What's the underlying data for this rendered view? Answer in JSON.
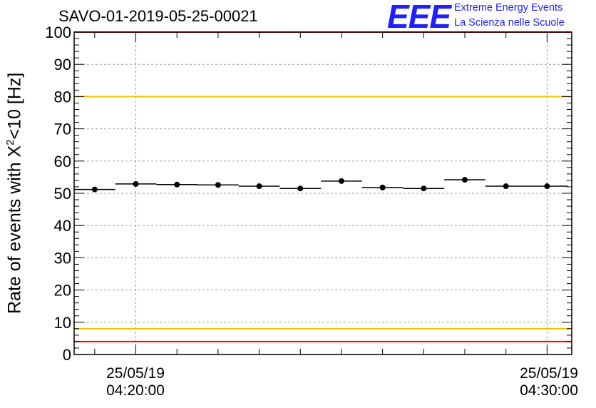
{
  "header": {
    "title": "SAVO-01-2019-05-25-00021",
    "logo_mark": "EEE",
    "logo_line1": "Extreme Energy Events",
    "logo_line2": "La Scienza nelle Scuole"
  },
  "colors": {
    "red_line": "#ff0000",
    "yellow_line": "#f2c200",
    "logo": "#1f1fff",
    "grid": "#9a9a9a"
  },
  "chart_data": {
    "type": "scatter",
    "title": "SAVO-01-2019-05-25-00021",
    "ylabel_pre": "Rate of events with X",
    "ylabel_sup": "2",
    "ylabel_post": "<10 [Hz]",
    "ylim": [
      0,
      100
    ],
    "yticks": [
      "0",
      "10",
      "20",
      "30",
      "40",
      "50",
      "60",
      "70",
      "80",
      "90",
      "100"
    ],
    "x_tick_labels": [
      {
        "date": "25/05/19",
        "time": "04:20:00"
      },
      {
        "date": "25/05/19",
        "time": "04:30:00"
      }
    ],
    "x_range_minutes_from_0420": [
      -1.5,
      10.6
    ],
    "grid": true,
    "reference_lines": [
      {
        "y": 100,
        "color": "red"
      },
      {
        "y": 80,
        "color": "yellow"
      },
      {
        "y": 8,
        "color": "yellow"
      },
      {
        "y": 4,
        "color": "red"
      }
    ],
    "bin_width_minutes": 1,
    "points": [
      {
        "x_min": -1.0,
        "y": 51.2
      },
      {
        "x_min": 0.0,
        "y": 52.9
      },
      {
        "x_min": 1.0,
        "y": 52.7
      },
      {
        "x_min": 2.0,
        "y": 52.6
      },
      {
        "x_min": 3.0,
        "y": 52.2
      },
      {
        "x_min": 4.0,
        "y": 51.5
      },
      {
        "x_min": 5.0,
        "y": 53.8
      },
      {
        "x_min": 6.0,
        "y": 51.8
      },
      {
        "x_min": 7.0,
        "y": 51.5
      },
      {
        "x_min": 8.0,
        "y": 54.2
      },
      {
        "x_min": 9.0,
        "y": 52.2
      },
      {
        "x_min": 10.0,
        "y": 52.2
      }
    ]
  }
}
